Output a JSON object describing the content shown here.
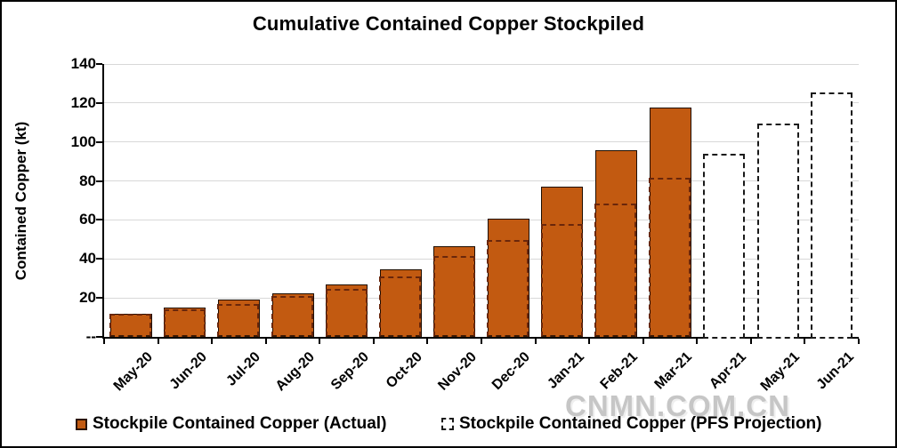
{
  "title": "Cumulative Contained Copper Stockpiled",
  "watermark": "CNMN.COM.CN",
  "colors": {
    "bar_fill": "#C25A11",
    "bar_border": "#1E0E00",
    "projection_dash_overlay": "#69260B",
    "projection_dash_outline": "#1A1A1A",
    "gridline": "#D8D8D8",
    "axis": "#000000"
  },
  "legend": {
    "actual_label": "Stockpile Contained Copper (Actual)",
    "projection_label": "Stockpile Contained Copper (PFS Projection)"
  },
  "chart_data": {
    "type": "bar",
    "title": "Cumulative Contained Copper Stockpiled",
    "xlabel": "",
    "ylabel": "Contained Copper (kt)",
    "ylim": [
      0,
      140
    ],
    "ytick_step": 20,
    "zero_tick_label": "--",
    "grid": true,
    "legend_position": "bottom",
    "categories": [
      "May-20",
      "Jun-20",
      "Jul-20",
      "Aug-20",
      "Sep-20",
      "Oct-20",
      "Nov-20",
      "Dec-20",
      "Jan-21",
      "Feb-21",
      "Mar-21",
      "Apr-21",
      "May-21",
      "Jun-21"
    ],
    "series": [
      {
        "name": "Stockpile Contained Copper (Actual)",
        "style": "solid-bar",
        "values": [
          12,
          15,
          19,
          22.5,
          27,
          34.5,
          46.5,
          60.5,
          77,
          96,
          117.5,
          null,
          null,
          null
        ]
      },
      {
        "name": "Stockpile Contained Copper (PFS Projection)",
        "style": "dashed-outline-bar",
        "values": [
          12,
          14,
          17,
          21,
          24.5,
          31,
          41.5,
          49.5,
          58,
          68.5,
          81.5,
          94,
          109.5,
          125.5
        ]
      }
    ]
  }
}
